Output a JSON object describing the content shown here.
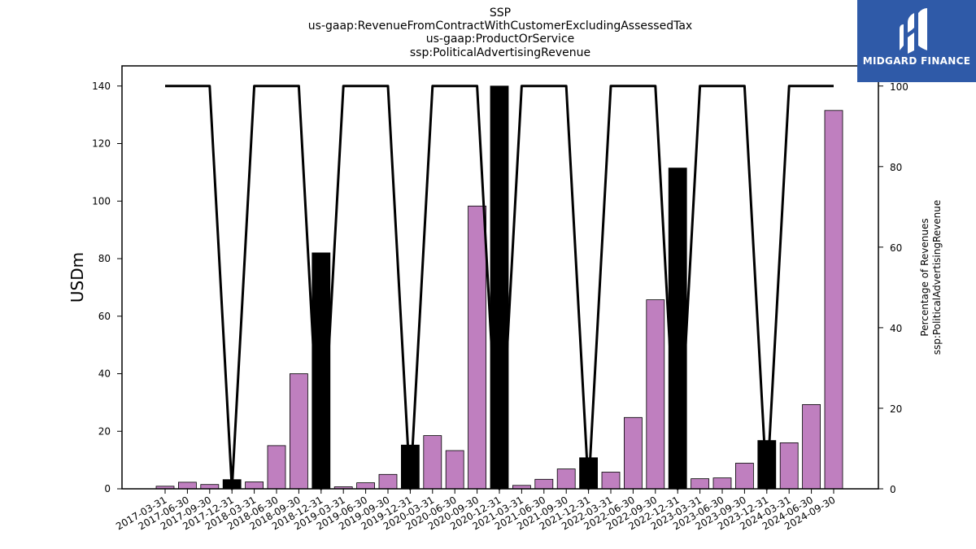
{
  "chart_data": {
    "type": "bar",
    "title_lines": [
      "SSP",
      "us-gaap:RevenueFromContractWithCustomerExcludingAssessedTax",
      "us-gaap:ProductOrService",
      "ssp:PoliticalAdvertisingRevenue"
    ],
    "categories": [
      "2017-03-31",
      "2017-06-30",
      "2017-09-30",
      "2017-12-31",
      "2018-03-31",
      "2018-06-30",
      "2018-09-30",
      "2018-12-31",
      "2019-03-31",
      "2019-06-30",
      "2019-09-30",
      "2019-12-31",
      "2020-03-31",
      "2020-06-30",
      "2020-09-30",
      "2020-12-31",
      "2021-03-31",
      "2021-06-30",
      "2021-09-30",
      "2021-12-31",
      "2022-03-31",
      "2022-06-30",
      "2022-09-30",
      "2022-12-31",
      "2023-03-31",
      "2023-06-30",
      "2023-09-30",
      "2023-12-31",
      "2024-03-31",
      "2024-06-30",
      "2024-09-30"
    ],
    "values": [
      0.9,
      2.3,
      1.5,
      3.2,
      2.4,
      15.0,
      40.0,
      82.0,
      0.7,
      2.1,
      5.0,
      15.2,
      18.5,
      13.3,
      98.3,
      140.0,
      1.2,
      3.3,
      6.9,
      10.8,
      5.8,
      24.8,
      65.7,
      111.5,
      3.5,
      3.8,
      8.9,
      16.8,
      16.0,
      29.3,
      131.5
    ],
    "bar_colors": [
      "#bf7fbf",
      "#bf7fbf",
      "#bf7fbf",
      "#000000",
      "#bf7fbf",
      "#bf7fbf",
      "#bf7fbf",
      "#000000",
      "#bf7fbf",
      "#bf7fbf",
      "#bf7fbf",
      "#000000",
      "#bf7fbf",
      "#bf7fbf",
      "#bf7fbf",
      "#000000",
      "#bf7fbf",
      "#bf7fbf",
      "#bf7fbf",
      "#000000",
      "#bf7fbf",
      "#bf7fbf",
      "#bf7fbf",
      "#000000",
      "#bf7fbf",
      "#bf7fbf",
      "#bf7fbf",
      "#000000",
      "#bf7fbf",
      "#bf7fbf",
      "#bf7fbf"
    ],
    "line_values": [
      100,
      100,
      100,
      0,
      100,
      100,
      100,
      0,
      100,
      100,
      100,
      0,
      100,
      100,
      100,
      0,
      100,
      100,
      100,
      0,
      100,
      100,
      100,
      0,
      100,
      100,
      100,
      0,
      100,
      100,
      100
    ],
    "ylabel": "USDm",
    "ylim": [
      0,
      147
    ],
    "yticks": [
      0,
      20,
      40,
      60,
      80,
      100,
      120,
      140
    ],
    "y2label_lines": [
      "Percentage of Revenues",
      "ssp:PoliticalAdvertisingRevenue"
    ],
    "y2lim": [
      0,
      105
    ],
    "y2ticks": [
      0,
      20,
      40,
      60,
      80,
      100
    ],
    "grid": false
  },
  "watermark": {
    "text": "MIDGARD FINANCE",
    "background": "#2f5aa8"
  }
}
